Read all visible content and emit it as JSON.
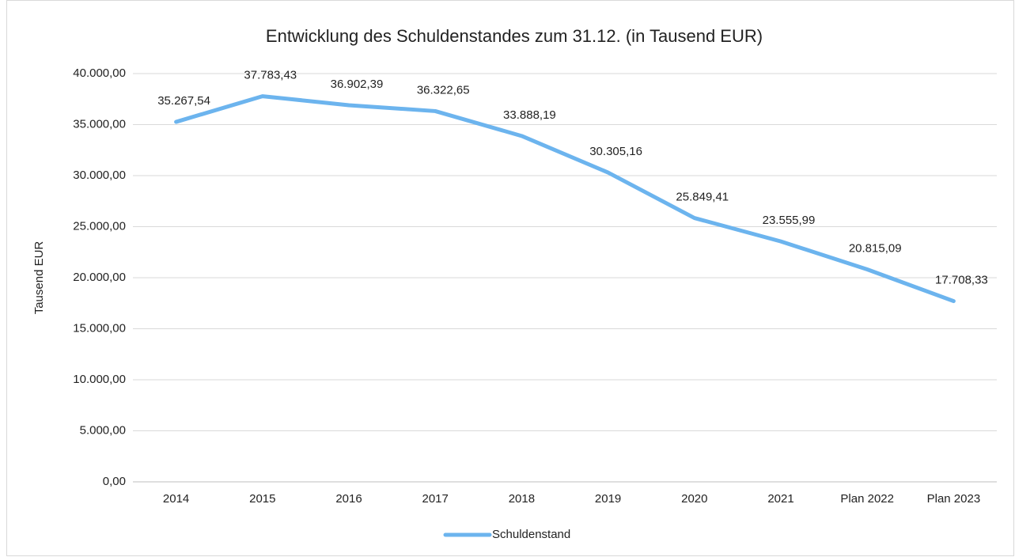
{
  "chart_data": {
    "type": "line",
    "title": "Entwicklung des Schuldenstandes zum 31.12. (in Tausend EUR)",
    "y_label": "Tausend EUR",
    "categories": [
      "2014",
      "2015",
      "2016",
      "2017",
      "2018",
      "2019",
      "2020",
      "2021",
      "Plan 2022",
      "Plan 2023"
    ],
    "series": [
      {
        "name": "Schuldenstand",
        "color": "#6cb4ee",
        "values": [
          35267.54,
          37783.43,
          36902.39,
          36322.65,
          33888.19,
          30305.16,
          25849.41,
          23555.99,
          20815.09,
          17708.33
        ],
        "value_labels": [
          "35.267,54",
          "37.783,43",
          "36.902,39",
          "36.322,65",
          "33.888,19",
          "30.305,16",
          "25.849,41",
          "23.555,99",
          "20.815,09",
          "17.708,33"
        ]
      }
    ],
    "ylim": [
      0,
      40000
    ],
    "yticks": [
      {
        "value": 0,
        "label": "0,00"
      },
      {
        "value": 5000,
        "label": "5.000,00"
      },
      {
        "value": 10000,
        "label": "10.000,00"
      },
      {
        "value": 15000,
        "label": "15.000,00"
      },
      {
        "value": 20000,
        "label": "20.000,00"
      },
      {
        "value": 25000,
        "label": "25.000,00"
      },
      {
        "value": 30000,
        "label": "30.000,00"
      },
      {
        "value": 35000,
        "label": "35.000,00"
      },
      {
        "value": 40000,
        "label": "40.000,00"
      }
    ],
    "grid": true,
    "legend": "bottom"
  }
}
